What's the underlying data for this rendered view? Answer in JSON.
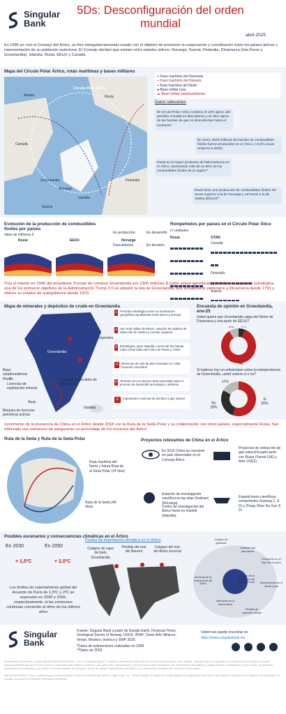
{
  "header": {
    "brand": "Singular Bank",
    "title": "5Ds: Desconfiguración del orden mundial",
    "date": "abril-2025"
  },
  "intro": "En 1996 se creó el Consejo del Ártico, un foro intergubernamental creado con el objetivo de promover la cooperación y coordinación entre los países árticos y representación de su población autóctona. El Consejo declaró que existen ocho estados árticos: Noruega, Suecia, Finlandia, Dinamarca (Isla Feroe y Groenlandia), Islandia, Rusia, EEUU y Canadá.",
  "arctic_map": {
    "title": "Mapa del Círculo Polar Ártico, rutas marítimas  y bases militares",
    "legend": [
      "Paso marítimo del Noroeste",
      "Paso marítimo del Noreste",
      "Ruta marítima del Norte",
      "Base militar rusa",
      "Base militar estadounidense"
    ],
    "labels": [
      "Círculo Polar Ártico",
      "Alaska",
      "Rusia",
      "Canadá",
      "Groenlandia",
      "Islandia",
      "Noruega",
      "Suecia",
      "Finlandia"
    ]
  },
  "facts": {
    "title": "Datos relevantes",
    "items": [
      "El Círculo Polar Ártico contiene el 13% aprox. del petróleo mundial no descubierto y un 30% aprox. de las fuentes de gas no descubiertas hasta el momento*",
      "En 2023, 2978 millones de barriles de combustibles fósiles fueron producidos en el Ártico. (~6,0% anual respecto a 2022)",
      "Rusia es el mayor productor de hidrocarburos en el Ártico, alcanzando más de un 90% de los combustibles fósiles de la región**",
      "Rusia tiene una producción de combustibles fósiles 28* veces superior a la de Noruega y 15*veces a la de Alaska (EEUU)**"
    ]
  },
  "production": {
    "title": "Evolución de la producción de combustibles fósiles por países",
    "units": "miles de millones €",
    "legend": [
      "En producción",
      "Descubiertos",
      "En desarrollo",
      "En decisión"
    ],
    "countries": [
      "Rusia",
      "EEUU",
      "Noruega"
    ]
  },
  "icebreakers": {
    "title": "Rompehielos por países en el Círculo Polar Ático",
    "units": "nº unidades",
    "russia": {
      "name": "Rusia",
      "count": 46
    },
    "nato": {
      "name": "OTAN",
      "countries": [
        {
          "name": "Canadá",
          "count": 18
        },
        {
          "name": "Finlandia",
          "count": 10
        },
        {
          "name": "Suecia",
          "count": 7
        },
        {
          "name": "EEUU",
          "count": 5
        },
        {
          "name": "Dinamarca",
          "count": 4
        }
      ]
    },
    "others": {
      "name": "Otros",
      "countries": [
        {
          "name": "China",
          "count": 4
        }
      ]
    }
  },
  "truman": "Tras el intento en 1946 del presidente Truman de comprar Groenlandia por 1300 millones $ (valor actual aproximado) debido a su posición estratégica, una de los primeros objetivos de la Administración Trump 2.0 es adquirir la isla de Groenlandia, que actualmente pertenece a Dinamarca desde 1791 y obtuvo su estatus de autogobierno desde 1979.",
  "greenland": {
    "title": "Mapa de minerales y depósitos de crudo en Groenlandia",
    "labels": [
      "Groenlandia",
      "Base estadounidense Pituffik",
      "Licencias de explotación mineral",
      "Nuuk",
      "Bloques de licencias petroleras activas",
      "Licencias especiales de exploración",
      "Depósitos",
      "Islandia"
    ],
    "items": [
      {
        "n": 1,
        "text": "Posición estratégica entre su localización geográfica equidistante entre EEUU y Europa"
      },
      {
        "n": 2,
        "text": "Ser sede militar de EEUU, estación de radares de detección de misiles y monitor espacial"
      },
      {
        "n": 3,
        "text": "Estratégica, junto Islandia, control de las futuras rutas comerciales del Ártico de Rusia y China"
      },
      {
        "n": 4,
        "text": "Reservas de más de 500 minerales en 1400 rincones conocidos"
      },
      {
        "n": 5,
        "text": "Territorio rico en tierras raras esenciales para el proceso de desarrollo tecnológico y defensa"
      },
      {
        "n": 6,
        "text": "Importantes reservas de petróleo y gas natural"
      }
    ]
  },
  "survey": {
    "title": "Encuesta de opinión en Groenlandia, ene-25"
  },
  "chart_data": [
    {
      "type": "pie",
      "title": "Usted quiere que Groenlandia salga del Reino de Dinamarca y sea parte de EEUU?",
      "categories": [
        "Sí",
        "No",
        "No sabe"
      ],
      "values": [
        6,
        85,
        9
      ],
      "value_labels": [
        "6%",
        "85%",
        "9%"
      ],
      "colors": [
        "#2b2b2b",
        "#c0201f",
        "#b9b9b9"
      ]
    },
    {
      "type": "pie",
      "title": "Si hubiese hoy un referéndum sobre la independencia de Groenlandia, usted votaría sí o no?",
      "categories": [
        "Sí",
        "No",
        "No sabe"
      ],
      "values": [
        56,
        28,
        17
      ],
      "value_labels": [
        "56%",
        "28%",
        "17%"
      ],
      "colors": [
        "#c0201f",
        "#2b2b2b",
        "#b9b9b9"
      ]
    }
  ],
  "china": "Incremento de la presencia de China en el Ártico desde 2018 con la Ruta de la Seda Polar y su colaboración con otros países, especialmente Rusia, han reforzado sus esfuerzos de asegurarse un porcentaje de los recursos del Ártico.",
  "silk_road": {
    "title": "Ruta de la Seda y Ruta de la Seda Polar",
    "labels": [
      "Ruta marítima del Norte y futura Ruta de la Seda Polar (24 días)",
      "Ruta de la Seda (48 días)"
    ]
  },
  "projects": {
    "title": "Proyectos relevantes de China en el Ártico",
    "items": [
      "En 2015 China se convierte en país observador en el Consejo Ártico",
      "Proyectos de extracción de gas natural licuado junto con Rusia (Yamal LNG y Artic LNG2)",
      "Estación de investigación científica en las islas Svalvard (Noruega)",
      "Centro de investigación del Ártico Norte en Kárhóll (Islandia)",
      "Expediciones científicas compeheliox Xuelong 2, Ji Di y Zhong Shan Da Xue Ji Di"
    ]
  },
  "climate": {
    "title": "Posibles escenarios y consecuencias climáticas en el Ártico",
    "y2030": "En 2030",
    "t2030": "+ 1,5ºC",
    "y2050": "En 2050",
    "t2050": "+ 2,0ºC",
    "text": "Los límites de calentamiento global del Acuerdo de París de 1,5ºC y 2ºC se superarán en 2030 y 2050, respectivamente, si las emisiones continúan creciendo al ritmo de los últimos años",
    "map_title": "Puntos de importancia climática en el Ártico",
    "map_labels": [
      "Colapso de capa de hielo Groenlandia",
      "Pérdida del mar del Barrent",
      "Colapso del mar del Ártico invernal"
    ],
    "diagram": [
      "Colapso de glaciares",
      "Aumento del permafrost",
      "Disrupción en el flujo del monzón",
      "Aumento de la temperatura del Ártico",
      "Colapso de la circulación del Atlántico Norte",
      "Interferencias en el efecto polar",
      "Alteración en la flora marina",
      "Pérdida de especies críticas"
    ]
  },
  "footer": {
    "brand": "Singular Bank",
    "source": "Fuente: Singular Bank a partir de Google Earth, Financial Times, Geological Survey of Norway, USGS, WWF, Clean Artic Alliance, Verian, Reuters, Invesco y SWP 2025.",
    "note1": "*Datos de estimaciones realizadas en 2008",
    "note2": "**Datos de 2023",
    "find": "Usted nos puede encontrar en:",
    "url": "https://www.singularbank.es/"
  },
  "disclaimer": [
    "El presente documento, propiedad de SINGULAR BANK, S.A.U. (“Singular Bank”), contiene información obtenida de fuentes consideradas como fiables. Singular Bank no garantiza la exactitud de la misma ni asume responsabilidad alguna por los errores u omisiones que pudiera contener. Las opiniones, estimaciones y proyecciones aquí recogidas son meramente orientativas y están sujetas a cambios sin previo aviso. El presente documento no constituye una oferta o recomendación de compra o venta de ningún instrumento financiero y se proporciona únicamente con fines informativos.",
    "SINGULAR BANK, S.A.U. entidad bajo la denominación comercial SINGULAR BANK, Calle Goya, 11 - 28001 Madrid. Entidad de crédito sujeta a la supervisión del Banco de España e inscrita en el Registro de Entidades de Crédito. Inscrita en el Registro Mercantil de Madrid."
  ]
}
